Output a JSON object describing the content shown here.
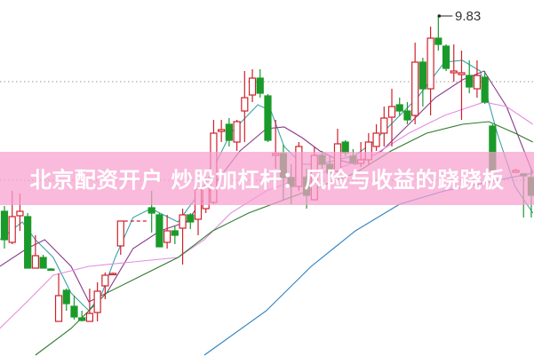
{
  "banner": {
    "title": "北京配资开户 炒股加杠杆：风险与收益的跷跷板"
  },
  "chart_data": {
    "type": "candlestick",
    "annotations": [
      {
        "text": "9.83",
        "index": 56,
        "price": 9.83,
        "marks": "period-high"
      }
    ],
    "colors": {
      "up": "#d0202a",
      "down": "#1a9a2a",
      "ma5": "#3aa3a8",
      "ma10": "#8a3a8a",
      "ma20": "#e48de0",
      "ma30": "#2c7a2c",
      "ma60": "#2a7fc0"
    },
    "grid": "dotted-horizontal",
    "candles": [
      [
        0,
        5.43,
        5.55,
        4.59,
        4.79
      ],
      [
        1,
        4.73,
        5.89,
        4.69,
        5.31
      ],
      [
        2,
        5.33,
        5.83,
        4.99,
        5.43
      ],
      [
        3,
        5.31,
        5.39,
        4.15,
        4.15
      ],
      [
        4,
        4.15,
        4.89,
        4.15,
        4.43
      ],
      [
        5,
        4.39,
        4.45,
        4.15,
        4.15
      ],
      [
        6,
        4.13,
        4.15,
        4.11,
        4.12
      ],
      [
        7,
        2.95,
        4.03,
        2.95,
        3.53
      ],
      [
        8,
        3.65,
        3.69,
        3.19,
        3.35
      ],
      [
        9,
        3.29,
        3.53,
        2.99,
        3.05
      ],
      [
        10,
        3.03,
        3.19,
        2.95,
        2.97
      ],
      [
        11,
        2.95,
        3.69,
        2.95,
        3.13
      ],
      [
        12,
        3.15,
        3.83,
        2.95,
        3.63
      ],
      [
        13,
        3.75,
        4.05,
        3.45,
        3.99
      ],
      [
        14,
        4.01,
        4.05,
        3.99,
        4.03
      ],
      [
        15,
        4.65,
        5.21,
        4.45,
        5.21
      ],
      [
        19,
        5.51,
        5.89,
        4.95,
        5.39
      ],
      [
        20,
        5.35,
        5.39,
        4.63,
        4.63
      ],
      [
        21,
        4.73,
        5.35,
        4.59,
        4.99
      ],
      [
        22,
        4.99,
        5.09,
        4.69,
        4.89
      ],
      [
        23,
        5.05,
        5.49,
        4.23,
        5.35
      ],
      [
        24,
        5.35,
        5.39,
        5.03,
        5.19
      ],
      [
        25,
        5.25,
        5.99,
        4.89,
        5.93
      ],
      [
        26,
        5.49,
        6.19,
        5.39,
        5.99
      ],
      [
        27,
        5.63,
        7.49,
        5.59,
        7.19
      ],
      [
        28,
        7.23,
        7.49,
        6.99,
        7.27
      ],
      [
        29,
        7.39,
        7.53,
        6.89,
        7.03
      ],
      [
        30,
        6.99,
        7.49,
        6.79,
        7.45
      ],
      [
        31,
        7.69,
        8.59,
        6.99,
        7.99
      ],
      [
        32,
        8.05,
        8.63,
        7.89,
        8.43
      ],
      [
        33,
        8.43,
        8.63,
        7.99,
        8.09
      ],
      [
        34,
        8.03,
        8.07,
        6.99,
        7.03
      ],
      [
        35,
        6.69,
        7.49,
        6.39,
        6.73
      ],
      [
        36,
        6.73,
        6.93,
        5.69,
        6.19
      ],
      [
        37,
        6.19,
        6.49,
        5.59,
        5.99
      ],
      [
        38,
        5.99,
        6.99,
        5.89,
        6.89
      ],
      [
        39,
        6.19,
        6.39,
        5.49,
        5.79
      ],
      [
        40,
        5.69,
        6.89,
        5.69,
        6.69
      ],
      [
        41,
        6.69,
        6.79,
        6.39,
        6.49
      ],
      [
        42,
        6.49,
        6.69,
        6.09,
        6.29
      ],
      [
        43,
        6.33,
        7.29,
        6.29,
        6.95
      ],
      [
        44,
        6.99,
        7.03,
        6.67,
        6.75
      ],
      [
        45,
        6.67,
        6.83,
        6.49,
        6.53
      ],
      [
        46,
        6.51,
        6.99,
        6.43,
        6.59
      ],
      [
        47,
        6.59,
        7.19,
        6.49,
        6.99
      ],
      [
        48,
        6.89,
        7.39,
        6.79,
        7.19
      ],
      [
        49,
        7.19,
        7.79,
        6.89,
        7.53
      ],
      [
        50,
        7.55,
        8.19,
        6.89,
        7.79
      ],
      [
        51,
        7.83,
        7.99,
        7.59,
        7.69
      ],
      [
        52,
        7.69,
        7.89,
        7.39,
        7.49
      ],
      [
        53,
        7.59,
        9.23,
        7.39,
        8.79
      ],
      [
        54,
        8.79,
        8.89,
        7.79,
        8.19
      ],
      [
        55,
        8.19,
        9.59,
        7.59,
        9.33
      ],
      [
        56,
        9.33,
        9.83,
        9.05,
        9.19
      ],
      [
        57,
        9.15,
        9.19,
        8.59,
        8.65
      ],
      [
        58,
        8.55,
        9.19,
        8.35,
        8.59
      ],
      [
        59,
        8.51,
        9.05,
        7.49,
        8.55
      ],
      [
        60,
        8.49,
        8.83,
        8.09,
        8.23
      ],
      [
        61,
        8.19,
        8.83,
        7.99,
        8.49
      ],
      [
        62,
        8.45,
        8.59,
        7.85,
        7.89
      ],
      [
        63,
        7.35,
        7.39,
        6.29,
        6.35
      ],
      [
        66,
        6.31,
        6.39,
        6.29,
        6.35
      ],
      [
        67,
        6.27,
        6.29,
        5.29,
        6.23
      ],
      [
        68,
        6.19,
        6.39,
        5.29,
        5.79
      ]
    ],
    "moving_averages": [
      {
        "key": "ma5",
        "points": [
          [
            -0.6,
            4.79
          ],
          [
            2.3,
            5.19
          ],
          [
            4.0,
            4.79
          ],
          [
            6.3,
            4.39
          ],
          [
            8.6,
            3.59
          ],
          [
            10.9,
            3.19
          ],
          [
            12.6,
            3.59
          ],
          [
            14.3,
            4.39
          ],
          [
            16.6,
            5.29
          ],
          [
            18.9,
            5.49
          ],
          [
            22.4,
            5.19
          ],
          [
            25.8,
            5.99
          ],
          [
            29.2,
            7.19
          ],
          [
            32.7,
            7.83
          ],
          [
            34.4,
            7.69
          ],
          [
            36.1,
            6.89
          ],
          [
            38.4,
            6.49
          ],
          [
            40.7,
            6.49
          ],
          [
            43.0,
            6.59
          ],
          [
            45.3,
            6.69
          ],
          [
            47.6,
            6.99
          ],
          [
            49.9,
            7.39
          ],
          [
            53.3,
            7.99
          ],
          [
            56.8,
            8.79
          ],
          [
            59.1,
            8.83
          ],
          [
            61.4,
            8.59
          ],
          [
            63.6,
            7.19
          ],
          [
            65.9,
            5.99
          ],
          [
            68.2,
            5.39
          ]
        ]
      },
      {
        "key": "ma10",
        "points": [
          [
            -0.6,
            4.19
          ],
          [
            2.9,
            4.59
          ],
          [
            5.2,
            4.79
          ],
          [
            8.6,
            4.19
          ],
          [
            10.9,
            3.39
          ],
          [
            13.2,
            3.59
          ],
          [
            16.6,
            4.59
          ],
          [
            20.1,
            4.99
          ],
          [
            23.5,
            5.19
          ],
          [
            26.9,
            5.99
          ],
          [
            30.4,
            6.79
          ],
          [
            33.8,
            7.29
          ],
          [
            36.1,
            7.33
          ],
          [
            38.4,
            7.09
          ],
          [
            40.7,
            6.79
          ],
          [
            43.0,
            6.59
          ],
          [
            45.3,
            6.49
          ],
          [
            48.7,
            6.79
          ],
          [
            52.2,
            7.39
          ],
          [
            55.6,
            7.99
          ],
          [
            59.1,
            8.39
          ],
          [
            61.9,
            8.59
          ],
          [
            64.8,
            7.79
          ],
          [
            68.2,
            6.29
          ]
        ]
      },
      {
        "key": "ma20",
        "points": [
          [
            -0.6,
            2.79
          ],
          [
            2.9,
            3.39
          ],
          [
            6.3,
            3.99
          ],
          [
            10.9,
            4.19
          ],
          [
            16.6,
            4.29
          ],
          [
            22.4,
            4.39
          ],
          [
            25.8,
            4.79
          ],
          [
            29.2,
            5.39
          ],
          [
            33.8,
            5.89
          ],
          [
            38.4,
            6.19
          ],
          [
            43.0,
            6.39
          ],
          [
            47.6,
            6.69
          ],
          [
            52.2,
            7.19
          ],
          [
            56.8,
            7.59
          ],
          [
            61.9,
            7.89
          ],
          [
            64.8,
            7.79
          ],
          [
            68.2,
            7.39
          ]
        ]
      },
      {
        "key": "ma30",
        "points": [
          [
            4.0,
            2.19
          ],
          [
            8.6,
            2.79
          ],
          [
            13.2,
            3.59
          ],
          [
            17.8,
            3.99
          ],
          [
            22.4,
            4.39
          ],
          [
            26.9,
            4.99
          ],
          [
            31.5,
            5.39
          ],
          [
            36.1,
            5.69
          ],
          [
            40.7,
            5.99
          ],
          [
            45.3,
            6.29
          ],
          [
            49.9,
            6.79
          ],
          [
            54.5,
            7.19
          ],
          [
            59.1,
            7.39
          ],
          [
            62.5,
            7.45
          ],
          [
            65.9,
            7.19
          ],
          [
            68.2,
            6.99
          ]
        ]
      },
      {
        "key": "ma60",
        "points": [
          [
            25.8,
            2.19
          ],
          [
            33.8,
            3.19
          ],
          [
            39.6,
            4.19
          ],
          [
            45.3,
            4.99
          ],
          [
            51.0,
            5.59
          ],
          [
            56.8,
            5.89
          ],
          [
            62.5,
            6.09
          ],
          [
            68.2,
            6.29
          ]
        ]
      }
    ]
  }
}
